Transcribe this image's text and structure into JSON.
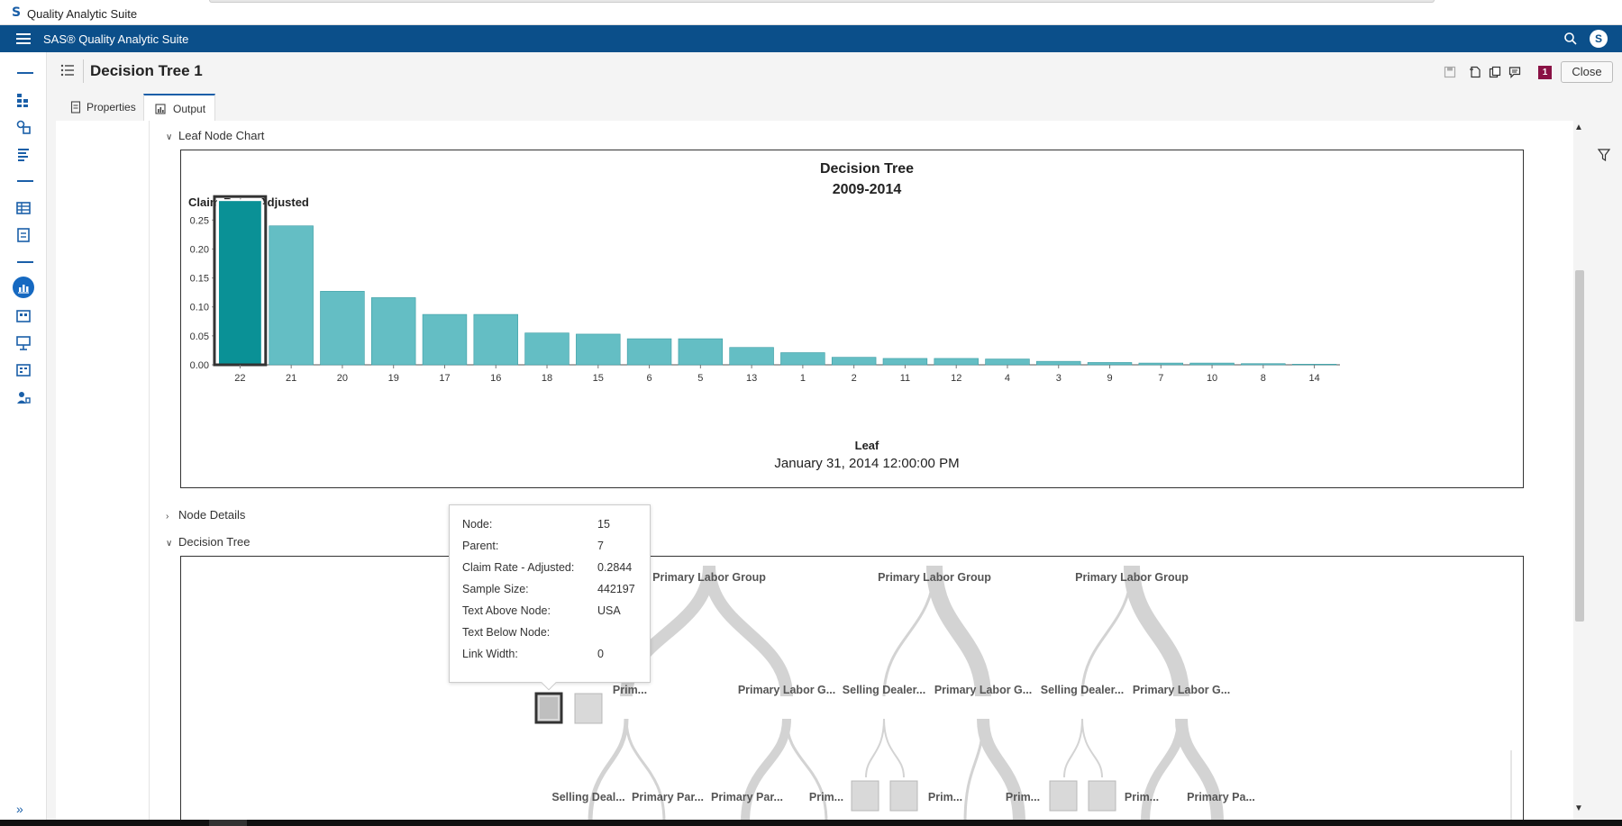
{
  "window": {
    "title": "Quality Analytic Suite"
  },
  "appbar": {
    "title": "SAS® Quality Analytic Suite",
    "avatar_letter": "S"
  },
  "header": {
    "title": "Decision Tree 1",
    "badge": "1",
    "close_label": "Close"
  },
  "tabs": [
    {
      "label": "Properties",
      "active": false
    },
    {
      "label": "Output",
      "active": true
    }
  ],
  "sections": {
    "leaf_chart": "Leaf Node Chart",
    "node_details": "Node Details",
    "decision_tree": "Decision Tree"
  },
  "chart_data": {
    "type": "bar",
    "title": "Decision Tree",
    "subtitle": "2009-2014",
    "ylabel": "Claim Rate - Adjusted",
    "xlabel": "Leaf",
    "footnote": "January 31, 2014 12:00:00 PM",
    "ylim": [
      0,
      0.28
    ],
    "yticks": [
      "0.00",
      "0.05",
      "0.10",
      "0.15",
      "0.20",
      "0.25"
    ],
    "categories": [
      "22",
      "21",
      "20",
      "19",
      "17",
      "16",
      "18",
      "15",
      "6",
      "5",
      "13",
      "1",
      "2",
      "11",
      "12",
      "4",
      "3",
      "9",
      "7",
      "10",
      "8",
      "14"
    ],
    "values": [
      0.2844,
      0.24,
      0.127,
      0.116,
      0.087,
      0.087,
      0.055,
      0.053,
      0.045,
      0.045,
      0.03,
      0.021,
      0.013,
      0.011,
      0.011,
      0.01,
      0.006,
      0.004,
      0.003,
      0.003,
      0.002,
      0.001
    ],
    "selected_category": "22",
    "bar_color": "#64bec4",
    "selected_color": "#0a9196"
  },
  "tooltip": {
    "rows": [
      {
        "key": "Node:",
        "value": "15"
      },
      {
        "key": "Parent:",
        "value": "7"
      },
      {
        "key": "Claim Rate - Adjusted:",
        "value": "0.2844"
      },
      {
        "key": "Sample Size:",
        "value": "442197"
      },
      {
        "key": "Text Above Node:",
        "value": "USA"
      },
      {
        "key": "Text Below Node:",
        "value": ""
      },
      {
        "key": "Link Width:",
        "value": "0"
      }
    ]
  },
  "tree": {
    "level1": [
      "Primary Labor Group",
      "Primary Labor Group",
      "Primary Labor Group"
    ],
    "level2": [
      "Prim...",
      "Primary Labor G...",
      "Selling Dealer...",
      "Primary Labor G...",
      "Selling Dealer...",
      "Primary Labor G..."
    ],
    "level3": [
      "Selling Deal...",
      "Primary Par...",
      "Primary Par...",
      "Prim...",
      "Prim...",
      "Prim...",
      "Prim...",
      "Primary Pa..."
    ]
  }
}
